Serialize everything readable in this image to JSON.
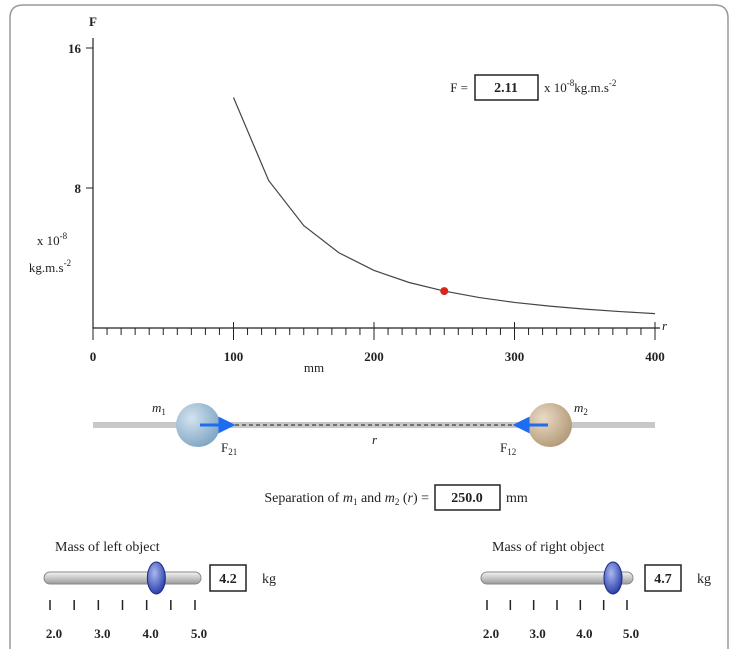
{
  "graph": {
    "y_title": "F",
    "x_title": "r",
    "x_unit": "mm",
    "y_unit_1": "x 10",
    "y_unit_1_sup": "-8",
    "y_unit_2": "kg.m.s",
    "y_unit_2_sup": "-2",
    "xlim": [
      0,
      400
    ],
    "ylim": [
      0,
      16
    ],
    "xticks": [
      0,
      100,
      200,
      300,
      400
    ],
    "xminor": [
      10,
      20,
      30,
      40,
      50,
      60,
      70,
      80,
      90,
      110,
      120,
      130,
      140,
      150,
      160,
      170,
      180,
      190,
      210,
      220,
      230,
      240,
      250,
      260,
      270,
      280,
      290,
      310,
      320,
      330,
      340,
      350,
      360,
      370,
      380,
      390
    ],
    "yticks": [
      8,
      16
    ],
    "curve": {
      "color": "#444444",
      "x": [
        100,
        125,
        150,
        175,
        200,
        225,
        250,
        275,
        300,
        325,
        350,
        375,
        400
      ],
      "y": [
        13.17,
        8.43,
        5.85,
        4.3,
        3.29,
        2.6,
        2.11,
        1.74,
        1.46,
        1.25,
        1.08,
        0.94,
        0.82
      ]
    },
    "point": {
      "x": 250,
      "y": 2.11,
      "color": "#d9261c"
    }
  },
  "readout": {
    "label": "F =",
    "value": 2.11,
    "unit_1": "x 10",
    "unit_1_sup": "-8",
    "unit_2": "kg.m.s",
    "unit_2_sup": "-2"
  },
  "diagram": {
    "m1": "m",
    "m1_sub": "1",
    "m2": "m",
    "m2_sub": "2",
    "f21": "F",
    "f21_sub": "21",
    "f12": "F",
    "f12_sub": "12",
    "r": "r"
  },
  "separation": {
    "text_1": "Separation of ",
    "m1": "m",
    "m1_sub": "1",
    "text_2": " and ",
    "m2": "m",
    "m2_sub": "2",
    "text_3": " (",
    "r": "r",
    "text_4": ") =",
    "value": {
      "value": 250,
      "label": "250.0"
    },
    "unit": "mm"
  },
  "left_slider": {
    "label": "Mass of left object",
    "value": 4.2,
    "unit": "kg",
    "range": [
      2,
      5
    ],
    "ticks": [
      2,
      2.5,
      3,
      3.5,
      4,
      4.5,
      5
    ],
    "tick_labels": [
      {
        "value": 2,
        "label": "2.0"
      },
      {
        "value": 3,
        "label": "3.0"
      },
      {
        "value": 4,
        "label": "4.0"
      },
      {
        "value": 5,
        "label": "5.0"
      }
    ]
  },
  "right_slider": {
    "label": "Mass of right object",
    "value": 4.7,
    "unit": "kg",
    "range": [
      2,
      5
    ],
    "ticks": [
      2,
      2.5,
      3,
      3.5,
      4,
      4.5,
      5
    ],
    "tick_labels": [
      {
        "value": 2,
        "label": "2.0"
      },
      {
        "value": 3,
        "label": "3.0"
      },
      {
        "value": 4,
        "label": "4.0"
      },
      {
        "value": 5,
        "label": "5.0"
      }
    ]
  }
}
